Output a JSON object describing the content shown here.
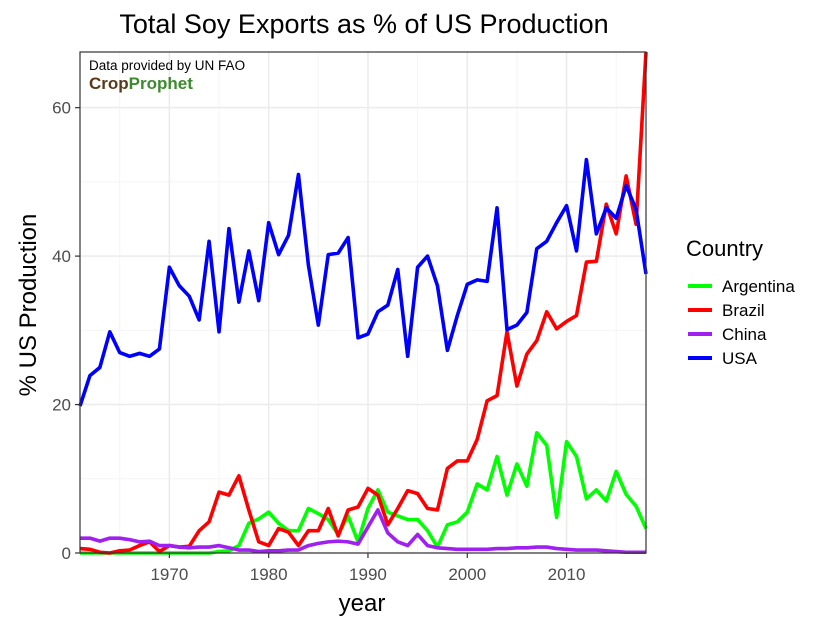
{
  "chart_data": {
    "type": "line",
    "title": "Total Soy Exports as % of US Production",
    "xlabel": "year",
    "ylabel": "% US Production",
    "xlim": [
      1961,
      2018
    ],
    "ylim": [
      0,
      67.5
    ],
    "x_ticks": [
      1970,
      1980,
      1990,
      2000,
      2010
    ],
    "x_tick_labels": [
      "1970",
      "1980",
      "1990",
      "2000",
      "2010"
    ],
    "y_ticks": [
      0,
      20,
      40,
      60
    ],
    "y_tick_labels": [
      "0",
      "20",
      "40",
      "60"
    ],
    "grid": true,
    "legend_title": "Country",
    "legend_position": "right",
    "annotation": "Data provided by UN FAO",
    "x": [
      1961,
      1962,
      1963,
      1964,
      1965,
      1966,
      1967,
      1968,
      1969,
      1970,
      1971,
      1972,
      1973,
      1974,
      1975,
      1976,
      1977,
      1978,
      1979,
      1980,
      1981,
      1982,
      1983,
      1984,
      1985,
      1986,
      1987,
      1988,
      1989,
      1990,
      1991,
      1992,
      1993,
      1994,
      1995,
      1996,
      1997,
      1998,
      1999,
      2000,
      2001,
      2002,
      2003,
      2004,
      2005,
      2006,
      2007,
      2008,
      2009,
      2010,
      2011,
      2012,
      2013,
      2014,
      2015,
      2016,
      2017,
      2018
    ],
    "series": [
      {
        "name": "Argentina",
        "color": "#00ff00",
        "values": [
          0,
          0,
          0,
          0,
          0,
          0,
          0,
          0,
          0,
          0,
          0,
          0,
          0,
          0,
          0.2,
          0.3,
          1,
          4,
          4.6,
          5.5,
          4,
          3,
          3,
          6,
          5.3,
          4.5,
          2.5,
          5,
          1.5,
          6,
          8.5,
          5.5,
          5,
          4.5,
          4.5,
          3,
          0.8,
          3.8,
          4.2,
          5.5,
          9.3,
          8.5,
          13,
          7.8,
          12,
          9,
          16.2,
          14.5,
          4.8,
          15,
          13,
          7.3,
          8.5,
          7,
          11,
          7.9,
          6.3,
          3.3
        ]
      },
      {
        "name": "Brazil",
        "color": "#ff0000",
        "values": [
          0.6,
          0.5,
          0.1,
          0,
          0.3,
          0.4,
          1,
          1.5,
          0.2,
          1,
          0.8,
          0.9,
          3,
          4.2,
          8.2,
          7.8,
          10.4,
          5.8,
          1.5,
          1,
          3.3,
          2.8,
          1,
          3,
          3,
          6,
          2.3,
          5.8,
          6.2,
          8.7,
          7.8,
          3.8,
          6,
          8.4,
          8,
          6,
          5.8,
          11.4,
          12.4,
          12.4,
          15.3,
          20.5,
          21.2,
          29.8,
          22.5,
          26.8,
          28.6,
          32.5,
          30.2,
          31.2,
          32,
          39.2,
          39.3,
          47,
          43,
          50.8,
          44.3,
          67.5
        ]
      },
      {
        "name": "China",
        "color": "#a020f0",
        "values": [
          2,
          2,
          1.6,
          2,
          2,
          1.8,
          1.5,
          1.6,
          1,
          1,
          0.8,
          0.7,
          0.8,
          0.8,
          1,
          0.7,
          0.4,
          0.4,
          0.2,
          0.3,
          0.3,
          0.4,
          0.4,
          1,
          1.3,
          1.5,
          1.6,
          1.5,
          1.2,
          3.5,
          5.8,
          2.7,
          1.5,
          1,
          2.5,
          1,
          0.7,
          0.6,
          0.5,
          0.5,
          0.5,
          0.5,
          0.6,
          0.6,
          0.7,
          0.7,
          0.8,
          0.8,
          0.6,
          0.5,
          0.4,
          0.4,
          0.4,
          0.3,
          0.2,
          0.1,
          0.1,
          0.1
        ]
      },
      {
        "name": "USA",
        "color": "#0000ff",
        "values": [
          19.8,
          23.9,
          25,
          29.8,
          27,
          26.5,
          26.9,
          26.5,
          27.5,
          38.5,
          36,
          34.6,
          31.4,
          42,
          29.8,
          43.7,
          33.8,
          40.7,
          34,
          44.5,
          40.2,
          42.8,
          51,
          38.8,
          30.7,
          40.2,
          40.4,
          42.5,
          29,
          29.5,
          32.5,
          33.4,
          38.2,
          26.5,
          38.5,
          40,
          36,
          27.3,
          32,
          36.2,
          36.8,
          36.6,
          46.5,
          30.1,
          30.7,
          32.4,
          41,
          42,
          44.5,
          46.8,
          40.7,
          53,
          43,
          46.5,
          45.1,
          49.5,
          46.3,
          37.6
        ]
      }
    ]
  },
  "watermark": {
    "brand_part1": "Crop",
    "brand_part2": "Prophet",
    "brand_color1": "#5a3a1a",
    "brand_color2": "#3c8a2e"
  },
  "styles": {
    "panel_border": "#333333",
    "grid_major": "#ebebeb",
    "grid_minor": "#f5f5f5",
    "tick_text": "#4d4d4d"
  }
}
